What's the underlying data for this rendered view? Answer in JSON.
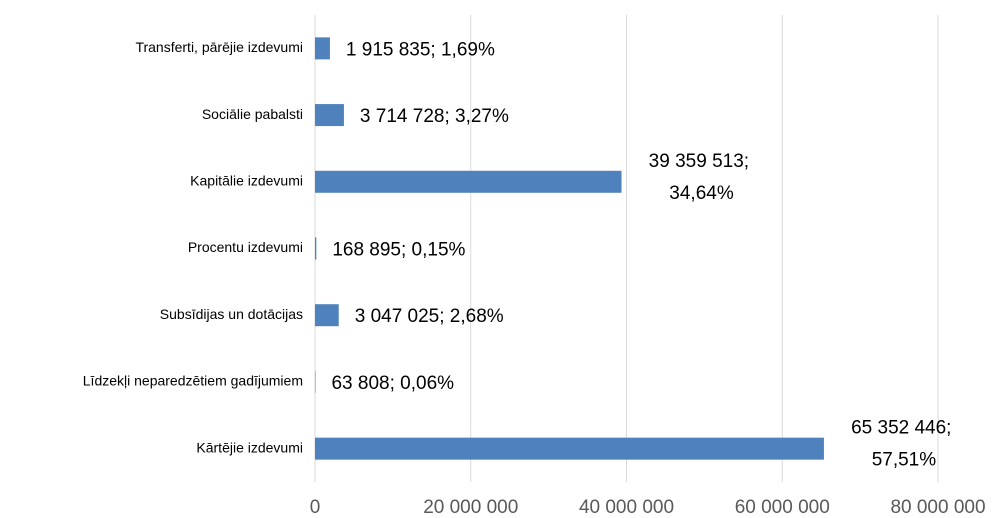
{
  "chart_data": {
    "type": "bar",
    "orientation": "horizontal",
    "categories": [
      "Transferti, pārējie izdevumi",
      "Sociālie pabalsti",
      "Kapitālie izdevumi",
      "Procentu izdevumi",
      "Subsīdijas un dotācijas",
      "Līdzekļi neparedzētiem gadījumiem",
      "Kārtējie izdevumi"
    ],
    "values": [
      1915835,
      3714728,
      39359513,
      168895,
      3047025,
      63808,
      65352446
    ],
    "value_labels": [
      "1 915 835; 1,69%",
      "3 714 728; 3,27%",
      "39 359 513; 34,64%",
      "168 895; 0,15%",
      "3 047 025; 2,68%",
      "63 808; 0,06%",
      "65 352 446; 57,51%"
    ],
    "color": "#4f81bd",
    "xlim": [
      0,
      80000000
    ],
    "xticks": [
      0,
      {
        "value": 20000000,
        "label": "20 000 000"
      },
      {
        "value": 40000000,
        "label": "40 000 000"
      },
      {
        "value": 60000000,
        "label": "60 000 000"
      },
      {
        "value": 80000000,
        "label": "80 000 000"
      }
    ],
    "grid": true
  }
}
